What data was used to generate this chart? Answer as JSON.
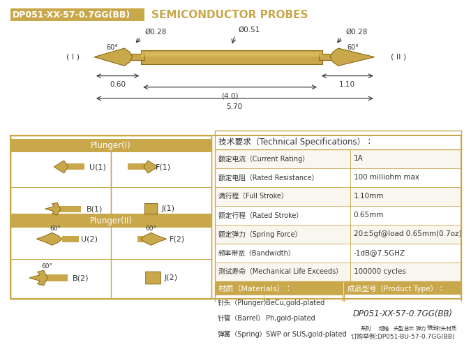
{
  "title_box_text": "DP051-XX-57-0.7GG(BB)",
  "title_right_text": "SEMICONDUCTOR PROBES",
  "gold_color": "#C9A84C",
  "gold_light": "#D4B96A",
  "gold_bg": "#C9A84C",
  "white": "#FFFFFF",
  "dark_text": "#333333",
  "border_color": "#C9A84C",
  "dim_color": "#555555",
  "probe_dims": {
    "phi_left": "Ø0.28",
    "phi_center": "Ø0.51",
    "phi_right": "Ø0.28",
    "d1": "0.60",
    "d2": "(4.0)",
    "d3": "1.10",
    "total": "5.70",
    "angle_I": "60°",
    "angle_II": "60°"
  },
  "specs": [
    [
      "额定电流（Current Rating）",
      "1A"
    ],
    [
      "额定电阻（Rated Resistance）",
      "100 milliohm max"
    ],
    [
      "满行程（Full Stroke）",
      "1.10mm"
    ],
    [
      "额定行程（Rated Stroke）",
      "0.65mm"
    ],
    [
      "额定弹力（Spring Force）",
      "20±5gf@load 0.65mm(0.7oz)"
    ],
    [
      "频率带宽（Bandwidth）",
      "-1dB@7.5GHZ"
    ],
    [
      "测试寿命（Mechanical Life Exceeds）",
      "100000 cycles"
    ]
  ],
  "specs_header": "技术要求（Technical Specifications）：",
  "plunger_I_header": "Plunger(I)",
  "plunger_II_header": "Plunger(II)",
  "plunger_I_types": [
    "U(1)",
    "F(1)",
    "B(1)",
    "J(1)"
  ],
  "plunger_II_types": [
    "U(2)",
    "F(2)",
    "B(2)",
    "J(2)"
  ],
  "materials_header": "材质（Materials）：",
  "materials": [
    [
      "针头（Plunger）",
      "BeCu,gold-plated"
    ],
    [
      "针管（Barrel）",
      "Ph,gold-plated"
    ],
    [
      "弹簧（Spring）",
      "SWP or SUS,gold-plated"
    ]
  ],
  "product_type_header": "成品型号（Product Type）：",
  "product_type_model": "DP051-XX-57-0.7GG(BB)",
  "product_type_labels": [
    "系列",
    "规格",
    "头型",
    "总长",
    "弹力",
    "镀金",
    "针头材质"
  ],
  "product_type_example": "订购举例:DP051-BU-57-0.7GG(BB)"
}
